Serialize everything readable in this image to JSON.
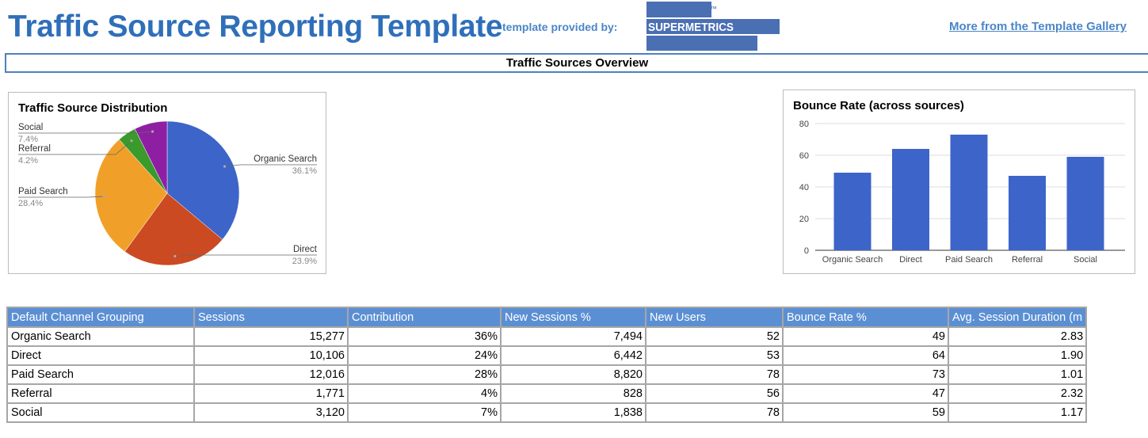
{
  "header": {
    "title": "Traffic Source Reporting Template",
    "provided_by": "template provided by:",
    "logo_text": "SUPERMETRICS",
    "logo_tm": "™",
    "gallery_link": "More from the Template Gallery"
  },
  "section": {
    "title": "Traffic Sources Overview"
  },
  "colors": {
    "title": "#2f6fba",
    "accent": "#4a86c8",
    "logo": "#4a6fb3",
    "table_header": "#5b8fd4",
    "bar": "#3d64c8",
    "pie": [
      "#3d64c8",
      "#cc4a21",
      "#f0a029",
      "#3a9a2c",
      "#8e1fa3"
    ]
  },
  "chart_data": [
    {
      "type": "pie",
      "title": "Traffic Source Distribution",
      "categories": [
        "Organic Search",
        "Direct",
        "Paid Search",
        "Referral",
        "Social"
      ],
      "values": [
        36.1,
        23.9,
        28.4,
        4.2,
        7.4
      ],
      "labels": [
        "36.1%",
        "23.9%",
        "28.4%",
        "4.2%",
        "7.4%"
      ]
    },
    {
      "type": "bar",
      "title": "Bounce Rate (across sources)",
      "categories": [
        "Organic Search",
        "Direct",
        "Paid Search",
        "Referral",
        "Social"
      ],
      "values": [
        49,
        64,
        73,
        47,
        59
      ],
      "ylim": [
        0,
        80
      ],
      "yticks": [
        0,
        20,
        40,
        60,
        80
      ],
      "grid": true
    }
  ],
  "table": {
    "columns": [
      "Default Channel Grouping",
      "Sessions",
      "Contribution",
      "New Sessions %",
      "New Users",
      "Bounce Rate %",
      "Avg. Session Duration (m"
    ],
    "rows": [
      [
        "Organic Search",
        "15,277",
        "36%",
        "7,494",
        "52",
        "49",
        "2.83"
      ],
      [
        "Direct",
        "10,106",
        "24%",
        "6,442",
        "53",
        "64",
        "1.90"
      ],
      [
        "Paid Search",
        "12,016",
        "28%",
        "8,820",
        "78",
        "73",
        "1.01"
      ],
      [
        "Referral",
        "1,771",
        "4%",
        "828",
        "56",
        "47",
        "2.32"
      ],
      [
        "Social",
        "3,120",
        "7%",
        "1,838",
        "78",
        "59",
        "1.17"
      ]
    ]
  }
}
